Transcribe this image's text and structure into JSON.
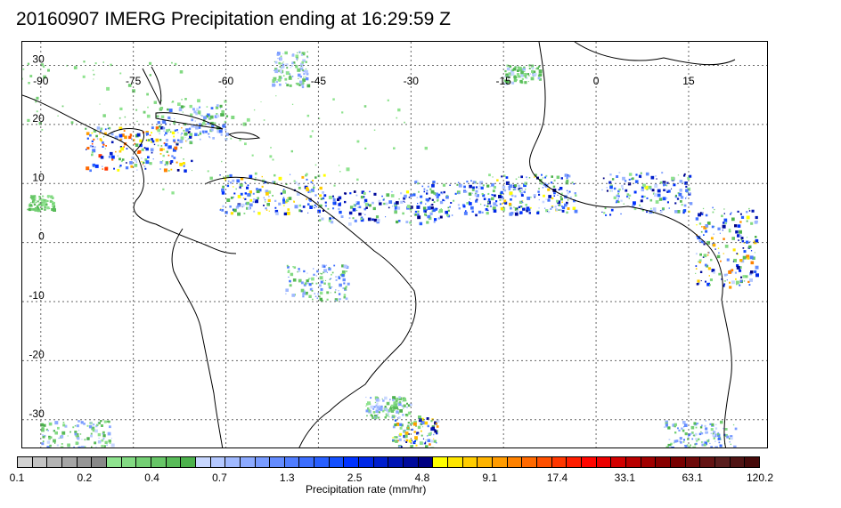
{
  "title": "20160907 IMERG Precipitation ending at 16:29:59 Z",
  "map": {
    "lon_labels": [
      "-90",
      "-75",
      "-60",
      "-45",
      "-30",
      "-15",
      "0",
      "15"
    ],
    "lat_labels": [
      "30",
      "20",
      "10",
      "0",
      "-10",
      "-20",
      "-30"
    ],
    "lon_range": [
      -93,
      28
    ],
    "lat_range": [
      -35,
      34
    ]
  },
  "colorbar": {
    "title": "Precipitation rate (mm/hr)",
    "tick_labels": [
      "0.1",
      "0.2",
      "0.4",
      "0.7",
      "1.3",
      "2.5",
      "4.8",
      "9.1",
      "17.4",
      "33.1",
      "63.1",
      "120.2"
    ],
    "colors": [
      "#d2d2d2",
      "#c3c3c3",
      "#b4b4b4",
      "#a5a5a5",
      "#969696",
      "#888888",
      "#8fe38f",
      "#82d982",
      "#74cf74",
      "#67c567",
      "#59bb59",
      "#4cb14c",
      "#c8d7ff",
      "#b4c8ff",
      "#a0b9ff",
      "#8caaff",
      "#789bff",
      "#648cff",
      "#507dff",
      "#3c6eff",
      "#285fff",
      "#1450ff",
      "#0032ff",
      "#0028e6",
      "#001ecd",
      "#0014b4",
      "#000a9b",
      "#000082",
      "#ffff00",
      "#ffe600",
      "#ffcd00",
      "#ffb400",
      "#ff9b00",
      "#ff8200",
      "#ff6900",
      "#ff5000",
      "#ff3700",
      "#ff1e00",
      "#ff0500",
      "#eb0000",
      "#d20000",
      "#b90000",
      "#a00000",
      "#870000",
      "#780000",
      "#6e0a0a",
      "#641414",
      "#5a1e1e",
      "#501414",
      "#460a0a"
    ]
  }
}
